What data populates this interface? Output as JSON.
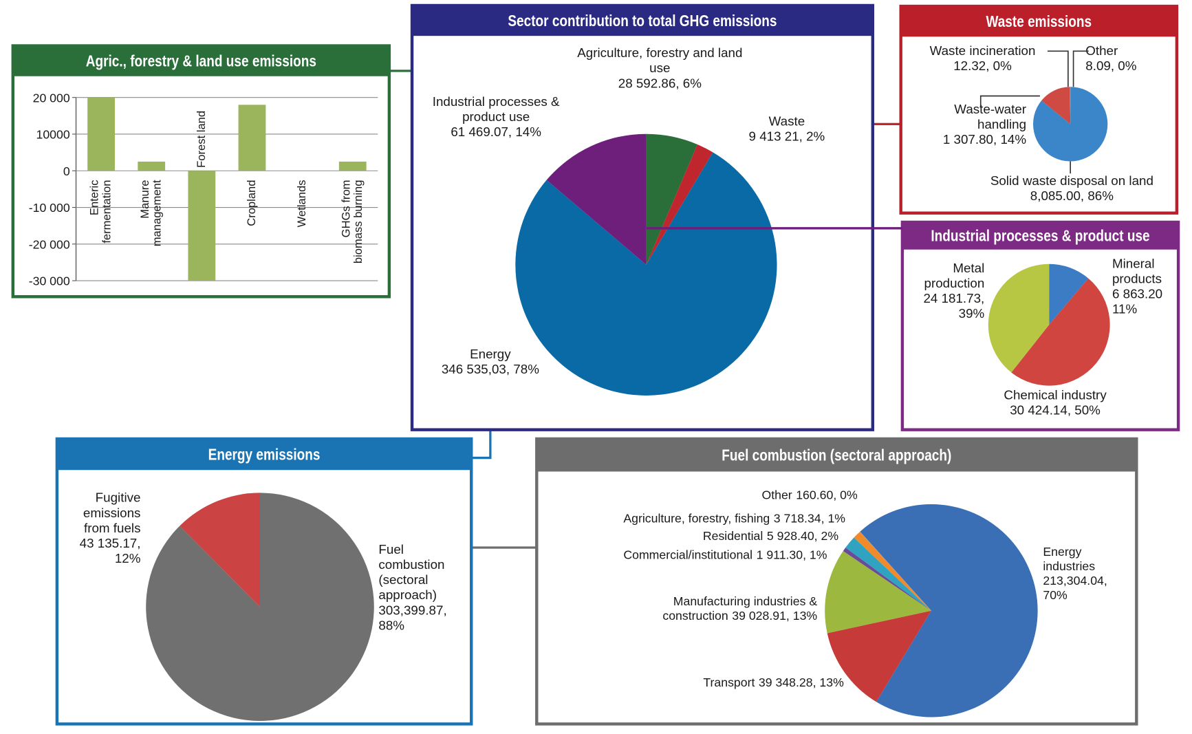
{
  "chart_data": [
    {
      "type": "bar",
      "title": "Agric., forestry & land use emissions",
      "categories": [
        "Enteric fermentation",
        "Manure management",
        "Forest land",
        "Cropland",
        "Wetlands",
        "GHGs from biomass burning"
      ],
      "values": [
        20000,
        2500,
        -30000,
        18000,
        0,
        2500
      ],
      "color": "#9bb55c",
      "ylim": [
        -30000,
        20000
      ],
      "yticks": [
        {
          "value": 20000,
          "label": "20 000"
        },
        10000,
        0,
        {
          "value": -10000,
          "label": "-10 000"
        },
        {
          "value": -20000,
          "label": "-20 000"
        },
        {
          "value": -30000,
          "label": "-30 000"
        }
      ],
      "grid": true
    },
    {
      "type": "pie",
      "title": "Sector contribution to total GHG emissions",
      "categories": [
        "Agriculture, forestry and land use",
        "Waste",
        "Energy",
        "Industrial processes & product use"
      ],
      "values": [
        28592.86,
        9413.21,
        346535.03,
        61469.07
      ],
      "value_labels": [
        "28 592.86, 6%",
        "9 413 21, 2%",
        "346 535,03, 78%",
        "61 469.07, 14%"
      ],
      "colors": [
        "#2a6e3a",
        "#c0262d",
        "#0a6aa6",
        "#6e1f7c"
      ]
    },
    {
      "type": "pie",
      "title": "Waste emissions",
      "categories": [
        "Solid waste disposal on land",
        "Waste-water handling",
        "Waste incineration",
        "Other"
      ],
      "values": [
        8085.0,
        1307.8,
        12.32,
        8.09
      ],
      "value_labels": [
        "8,085.00, 86%",
        "1 307.80, 14%",
        "12.32, 0%",
        "8.09, 0%"
      ],
      "colors": [
        "#3a86c8",
        "#d04a44",
        "#e08a3a",
        "#8a8a8a"
      ]
    },
    {
      "type": "pie",
      "title": "Industrial processes & product use",
      "categories": [
        "Mineral products",
        "Chemical industry",
        "Metal production"
      ],
      "values": [
        6863.2,
        30424.14,
        24181.73
      ],
      "value_labels": [
        "6 863.20 11%",
        "30 424.14, 50%",
        "24 181.73, 39%"
      ],
      "colors": [
        "#3b7cc4",
        "#d0453f",
        "#b7c744"
      ]
    },
    {
      "type": "pie",
      "title": "Energy emissions",
      "categories": [
        "Fuel combustion (sectoral approach)",
        "Fugitive emissions from fuels"
      ],
      "values": [
        303399.87,
        43135.17
      ],
      "value_labels": [
        "303,399.87, 88%",
        "43 135.17, 12%"
      ],
      "colors": [
        "#707070",
        "#cc4343"
      ]
    },
    {
      "type": "pie",
      "title": "Fuel combustion (sectoral approach)",
      "categories": [
        "Energy industries",
        "Transport",
        "Manufacturing industries & construction",
        "Commercial/institutional",
        "Residential",
        "Agriculture, forestry, fishing",
        "Other"
      ],
      "values": [
        213304.04,
        39348.28,
        39028.91,
        1911.3,
        5928.4,
        3718.34,
        160.6
      ],
      "value_labels": [
        "213,304.04, 70%",
        "39 348.28, 13%",
        "39 028.91, 13%",
        "1 911.30, 1%",
        "5 928.40, 2%",
        "3 718.34, 1%",
        "160.60, 0%"
      ],
      "colors": [
        "#3a6fb5",
        "#c73a3a",
        "#9cb83e",
        "#6a4a9a",
        "#2fa3c0",
        "#f08a2a",
        "#999999"
      ]
    }
  ]
}
